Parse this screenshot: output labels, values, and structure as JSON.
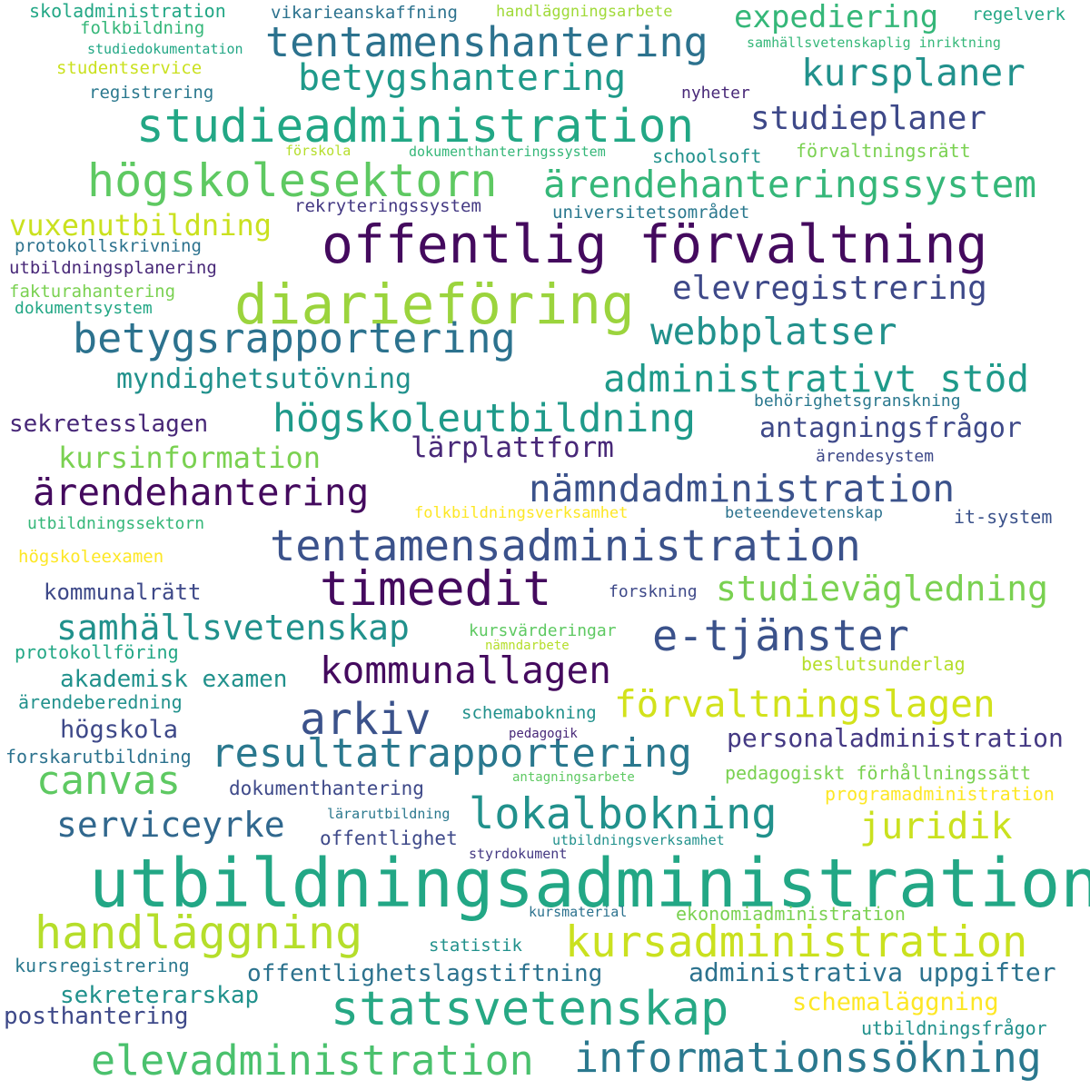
{
  "words": [
    {
      "text": "utbildningsadministration",
      "color": "#22a785"
    },
    {
      "text": "offentlig förvaltning",
      "color": "#440a5e"
    },
    {
      "text": "diarieföring",
      "color": "#9bd43d"
    },
    {
      "text": "statsvetenskap",
      "color": "#26a884"
    },
    {
      "text": "timeedit",
      "color": "#440a5e"
    },
    {
      "text": "studieadministration",
      "color": "#22a785"
    },
    {
      "text": "högskolesektorn",
      "color": "#5ec962"
    },
    {
      "text": "handläggning",
      "color": "#b5de2b"
    },
    {
      "text": "kursadministration",
      "color": "#cae11f"
    },
    {
      "text": "tentamensadministration",
      "color": "#3b528b"
    },
    {
      "text": "lokalbokning",
      "color": "#21918c"
    },
    {
      "text": "elevadministration",
      "color": "#4ac16d"
    },
    {
      "text": "informationssökning",
      "color": "#2a788e"
    },
    {
      "text": "resultatrapportering",
      "color": "#2a788e"
    },
    {
      "text": "betygsrapportering",
      "color": "#2c728e"
    },
    {
      "text": "tentamenshantering",
      "color": "#2c728e"
    },
    {
      "text": "arkiv",
      "color": "#3b528b"
    },
    {
      "text": "e-tjänster",
      "color": "#3b528b"
    },
    {
      "text": "kommunallagen",
      "color": "#440a5e"
    },
    {
      "text": "förvaltningslagen",
      "color": "#d2e21b"
    },
    {
      "text": "ärendehantering",
      "color": "#440a5e"
    },
    {
      "text": "nämndadministration",
      "color": "#3b528b"
    },
    {
      "text": "högskoleutbildning",
      "color": "#1f9a8a"
    },
    {
      "text": "ärendehanteringssystem",
      "color": "#35b779"
    },
    {
      "text": "kursplaner",
      "color": "#21918c"
    },
    {
      "text": "betygshantering",
      "color": "#1f9a8a"
    },
    {
      "text": "administrativt stöd",
      "color": "#1f9a8a"
    },
    {
      "text": "canvas",
      "color": "#5ec962"
    },
    {
      "text": "juridik",
      "color": "#cae11f"
    },
    {
      "text": "samhällsvetenskap",
      "color": "#21918c"
    },
    {
      "text": "studievägledning",
      "color": "#7ad151"
    },
    {
      "text": "serviceyrke",
      "color": "#31688e"
    },
    {
      "text": "webbplatser",
      "color": "#21918c"
    },
    {
      "text": "elevregistrering",
      "color": "#3e4989"
    },
    {
      "text": "studieplaner",
      "color": "#3e4989"
    },
    {
      "text": "expediering",
      "color": "#35b779"
    },
    {
      "text": "kursinformation",
      "color": "#7ad151"
    },
    {
      "text": "vuxenutbildning",
      "color": "#cae11f"
    },
    {
      "text": "myndighetsutövning",
      "color": "#21918c"
    },
    {
      "text": "lärplattform",
      "color": "#482878"
    },
    {
      "text": "antagningsfrågor",
      "color": "#3e4989"
    },
    {
      "text": "personaladministration",
      "color": "#443983"
    },
    {
      "text": "administrativa uppgifter",
      "color": "#2c728e"
    },
    {
      "text": "offentlighetslagstiftning",
      "color": "#2c728e"
    },
    {
      "text": "schemaläggning",
      "color": "#fde725"
    },
    {
      "text": "sekreterarskap",
      "color": "#21918c"
    },
    {
      "text": "akademisk examen",
      "color": "#21918c"
    },
    {
      "text": "sekretesslagen",
      "color": "#482878"
    },
    {
      "text": "högskola",
      "color": "#3e4989"
    },
    {
      "text": "posthantering",
      "color": "#3e4989"
    },
    {
      "text": "kommunalrätt",
      "color": "#3e4989"
    },
    {
      "text": "dokumenthantering",
      "color": "#3e4989"
    },
    {
      "text": "offentlighet",
      "color": "#3e4989"
    },
    {
      "text": "pedagogiskt förhållningssätt",
      "color": "#7ad151"
    },
    {
      "text": "programadministration",
      "color": "#fde725"
    },
    {
      "text": "ekonomiadministration",
      "color": "#7ad151"
    },
    {
      "text": "beslutsunderlag",
      "color": "#b5de2b"
    },
    {
      "text": "utbildningsfrågor",
      "color": "#21918c"
    },
    {
      "text": "kursregistrering",
      "color": "#2a788e"
    },
    {
      "text": "statistik",
      "color": "#21918c"
    },
    {
      "text": "schemabokning",
      "color": "#21918c"
    },
    {
      "text": "ärendeberedning",
      "color": "#21918c"
    },
    {
      "text": "protokollföring",
      "color": "#22a785"
    },
    {
      "text": "forskarutbildning",
      "color": "#2c728e"
    },
    {
      "text": "rekryteringssystem",
      "color": "#443983"
    },
    {
      "text": "universitetsområdet",
      "color": "#2a788e"
    },
    {
      "text": "protokollskrivning",
      "color": "#2c728e"
    },
    {
      "text": "utbildningsplanering",
      "color": "#482878"
    },
    {
      "text": "fakturahantering",
      "color": "#7ad151"
    },
    {
      "text": "dokumentsystem",
      "color": "#22a785"
    },
    {
      "text": "registrering",
      "color": "#2a788e"
    },
    {
      "text": "studentservice",
      "color": "#cae11f"
    },
    {
      "text": "folkbildning",
      "color": "#35b779"
    },
    {
      "text": "skoladministration",
      "color": "#22a785"
    },
    {
      "text": "vikarieanskaffning",
      "color": "#2c728e"
    },
    {
      "text": "handläggningsarbete",
      "color": "#a0da39"
    },
    {
      "text": "regelverk",
      "color": "#22a785"
    },
    {
      "text": "samhällsvetenskaplig inriktning",
      "color": "#35b779"
    },
    {
      "text": "studiedokumentation",
      "color": "#22a785"
    },
    {
      "text": "nyheter",
      "color": "#482878"
    },
    {
      "text": "förskola",
      "color": "#b5de2b"
    },
    {
      "text": "dokumenthanteringssystem",
      "color": "#35b779"
    },
    {
      "text": "schoolsoft",
      "color": "#21918c"
    },
    {
      "text": "förvaltningsrätt",
      "color": "#7ad151"
    },
    {
      "text": "behörighetsgranskning",
      "color": "#2a788e"
    },
    {
      "text": "ärendesystem",
      "color": "#3e4989"
    },
    {
      "text": "folkbildningsverksamhet",
      "color": "#fde725"
    },
    {
      "text": "beteendevetenskap",
      "color": "#2c728e"
    },
    {
      "text": "it-system",
      "color": "#3b528b"
    },
    {
      "text": "utbildningssektorn",
      "color": "#35b779"
    },
    {
      "text": "högskoleexamen",
      "color": "#fde725"
    },
    {
      "text": "forskning",
      "color": "#3e4989"
    },
    {
      "text": "kursvärderingar",
      "color": "#5ec962"
    },
    {
      "text": "nämndarbete",
      "color": "#b5de2b"
    },
    {
      "text": "pedagogik",
      "color": "#482878"
    },
    {
      "text": "antagningsarbete",
      "color": "#5ec962"
    },
    {
      "text": "lärarutbildning",
      "color": "#2a788e"
    },
    {
      "text": "utbildningsverksamhet",
      "color": "#21918c"
    },
    {
      "text": "styrdokument",
      "color": "#443983"
    },
    {
      "text": "kursmaterial",
      "color": "#2c728e"
    }
  ]
}
